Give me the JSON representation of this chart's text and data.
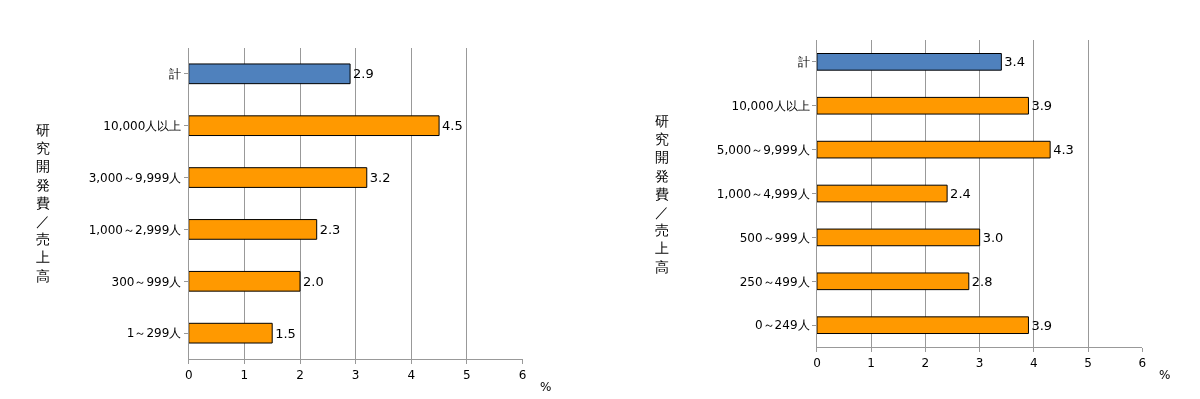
{
  "chart_data": [
    {
      "type": "bar",
      "orientation": "horizontal",
      "ylabel": "研究開発費／売上高",
      "xlabel": "%",
      "categories": [
        "計",
        "10,000人以上",
        "3,000～9,999人",
        "1,000～2,999人",
        "300～999人",
        "1～299人"
      ],
      "values": [
        2.9,
        4.5,
        3.2,
        2.3,
        2.0,
        1.5
      ],
      "value_labels": [
        "2.9",
        "4.5",
        "3.2",
        "2.3",
        "2.0",
        "1.5"
      ],
      "colors": [
        "#4f81bd",
        "#ff9900",
        "#ff9900",
        "#ff9900",
        "#ff9900",
        "#ff9900"
      ],
      "xlim": [
        0,
        6
      ],
      "xticks": [
        0,
        1,
        2,
        3,
        4,
        5,
        6
      ],
      "grid": "x",
      "legend": false
    },
    {
      "type": "bar",
      "orientation": "horizontal",
      "ylabel": "研究開発費／売上高",
      "xlabel": "%",
      "categories": [
        "計",
        "10,000人以上",
        "5,000～9,999人",
        "1,000～4,999人",
        "500～999人",
        "250～499人",
        "0～249人"
      ],
      "values": [
        3.4,
        3.9,
        4.3,
        2.4,
        3.0,
        2.8,
        3.9
      ],
      "value_labels": [
        "3.4",
        "3.9",
        "4.3",
        "2.4",
        "3.0",
        "2.8",
        "3.9"
      ],
      "colors": [
        "#4f81bd",
        "#ff9900",
        "#ff9900",
        "#ff9900",
        "#ff9900",
        "#ff9900",
        "#ff9900"
      ],
      "xlim": [
        0,
        6
      ],
      "xticks": [
        0,
        1,
        2,
        3,
        4,
        5,
        6
      ],
      "grid": "x",
      "legend": false
    }
  ]
}
